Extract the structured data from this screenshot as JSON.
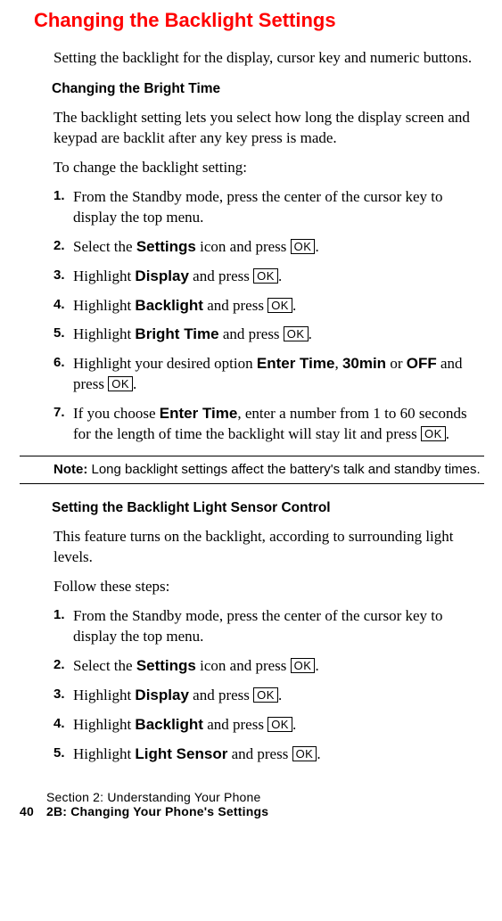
{
  "title": "Changing the Backlight Settings",
  "intro": "Setting the backlight for the display, cursor key and numeric buttons.",
  "section1": {
    "heading": "Changing the Bright Time",
    "p1": "The backlight setting lets you select how long the display screen and keypad are backlit after any key press is made.",
    "p2": "To change the backlight setting:",
    "steps": {
      "s1": {
        "num": "1.",
        "a": "From the Standby mode, press the center of the cursor key to display the top menu."
      },
      "s2": {
        "num": "2.",
        "a": "Select the ",
        "b": "Settings",
        "c": " icon and press ",
        "d": "."
      },
      "s3": {
        "num": "3.",
        "a": "Highlight ",
        "b": "Display",
        "c": " and press ",
        "d": "."
      },
      "s4": {
        "num": "4.",
        "a": "Highlight ",
        "b": "Backlight",
        "c": " and press ",
        "d": "."
      },
      "s5": {
        "num": "5.",
        "a": "Highlight ",
        "b": "Bright Time",
        "c": " and press ",
        "d": "."
      },
      "s6": {
        "num": "6.",
        "a": "Highlight your desired option ",
        "b": "Enter Time",
        "c": ", ",
        "d": "30min",
        "e": " or ",
        "f": "OFF",
        "g": " and press ",
        "h": "."
      },
      "s7": {
        "num": "7.",
        "a": "If you choose ",
        "b": "Enter Time",
        "c": ", enter a number from 1 to 60 seconds for the length of time the backlight will stay lit and press ",
        "d": "."
      }
    }
  },
  "note": {
    "label": "Note:",
    "text": " Long backlight settings affect the battery's talk and standby times."
  },
  "section2": {
    "heading": "Setting the Backlight Light Sensor Control",
    "p1": "This feature turns on the backlight, according to surrounding light levels.",
    "p2": "Follow these steps:",
    "steps": {
      "s1": {
        "num": "1.",
        "a": "From the Standby mode, press the center of the cursor key to display the top menu."
      },
      "s2": {
        "num": "2.",
        "a": "Select the ",
        "b": "Settings",
        "c": " icon and press ",
        "d": "."
      },
      "s3": {
        "num": "3.",
        "a": "Highlight ",
        "b": "Display",
        "c": " and press ",
        "d": "."
      },
      "s4": {
        "num": "4.",
        "a": "Highlight ",
        "b": "Backlight",
        "c": " and press ",
        "d": "."
      },
      "s5": {
        "num": "5.",
        "a": "Highlight ",
        "b": "Light Sensor",
        "c": " and press ",
        "d": "."
      }
    }
  },
  "ok": "OK",
  "footer": {
    "line1": "Section 2: Understanding Your Phone",
    "page": "40",
    "line2": "2B: Changing Your Phone's Settings"
  }
}
